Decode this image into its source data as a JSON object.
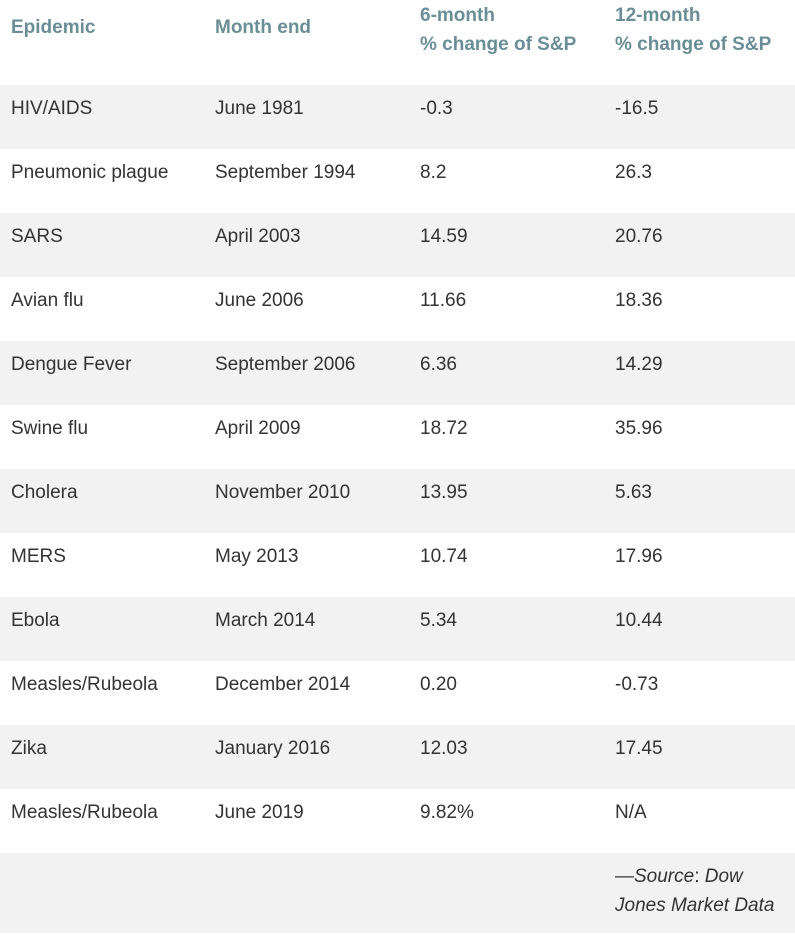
{
  "headers": {
    "epidemic": "Epidemic",
    "month_end": "Month end",
    "six_month_line1": "6-month",
    "six_month_line2": "% change of S&P",
    "twelve_month_line1": "12-month",
    "twelve_month_line2": "% change of S&P"
  },
  "rows": [
    {
      "epidemic": "HIV/AIDS",
      "month_end": "June 1981",
      "six_month": "-0.3",
      "twelve_month": "-16.5"
    },
    {
      "epidemic": "Pneumonic plague",
      "month_end": "September 1994",
      "six_month": "8.2",
      "twelve_month": "26.3"
    },
    {
      "epidemic": "SARS",
      "month_end": "April 2003",
      "six_month": "14.59",
      "twelve_month": "20.76"
    },
    {
      "epidemic": "Avian flu",
      "month_end": "June 2006",
      "six_month": "11.66",
      "twelve_month": "18.36"
    },
    {
      "epidemic": "Dengue Fever",
      "month_end": "September 2006",
      "six_month": "6.36",
      "twelve_month": "14.29"
    },
    {
      "epidemic": "Swine flu",
      "month_end": "April 2009",
      "six_month": "18.72",
      "twelve_month": "35.96"
    },
    {
      "epidemic": "Cholera",
      "month_end": "November 2010",
      "six_month": "13.95",
      "twelve_month": "5.63"
    },
    {
      "epidemic": "MERS",
      "month_end": "May 2013",
      "six_month": "10.74",
      "twelve_month": "17.96"
    },
    {
      "epidemic": "Ebola",
      "month_end": "March 2014",
      "six_month": "5.34",
      "twelve_month": "10.44"
    },
    {
      "epidemic": "Measles/Rubeola",
      "month_end": "December 2014",
      "six_month": "0.20",
      "twelve_month": "-0.73"
    },
    {
      "epidemic": "Zika",
      "month_end": "January 2016",
      "six_month": "12.03",
      "twelve_month": "17.45"
    },
    {
      "epidemic": "Measles/Rubeola",
      "month_end": "June 2019",
      "six_month": "9.82%",
      "twelve_month": "N/A"
    }
  ],
  "source": {
    "dash": "—",
    "label": "Source",
    "colon": ": ",
    "text_line1": "Dow",
    "text_line2": "Jones Market Data"
  },
  "colors": {
    "header_text": "#6a8e96",
    "shade_row": "#f2f2f2",
    "body_text": "#333333"
  }
}
